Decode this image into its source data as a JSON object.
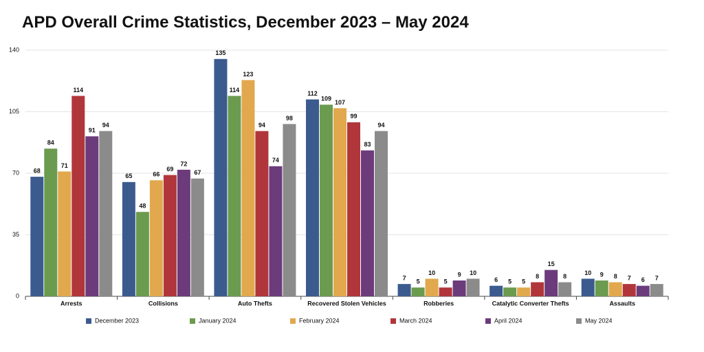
{
  "chart_data": {
    "type": "bar",
    "title": "APD Overall Crime Statistics, December 2023 – May 2024",
    "categories": [
      "Arrests",
      "Collisions",
      "Auto Thefts",
      "Recovered Stolen Vehicles",
      "Robberies",
      "Catalytic Converter Thefts",
      "Assaults"
    ],
    "series": [
      {
        "name": "December 2023",
        "color": "#3b5b8f",
        "values": [
          68,
          65,
          135,
          112,
          7,
          6,
          10
        ]
      },
      {
        "name": "January 2024",
        "color": "#6b9b4f",
        "values": [
          84,
          48,
          114,
          109,
          5,
          5,
          9
        ]
      },
      {
        "name": "February 2024",
        "color": "#e1a84d",
        "values": [
          71,
          66,
          123,
          107,
          10,
          5,
          8
        ]
      },
      {
        "name": "March 2024",
        "color": "#b1363b",
        "values": [
          114,
          69,
          94,
          99,
          5,
          8,
          7
        ]
      },
      {
        "name": "April 2024",
        "color": "#6c3b7b",
        "values": [
          91,
          72,
          74,
          83,
          9,
          15,
          6
        ]
      },
      {
        "name": "May 2024",
        "color": "#8b8b8b",
        "values": [
          94,
          67,
          98,
          94,
          10,
          8,
          7
        ]
      }
    ],
    "ylim": [
      0,
      140
    ],
    "yticks": [
      0,
      35,
      70,
      105,
      140
    ],
    "grid": true,
    "legend": "bottom"
  }
}
